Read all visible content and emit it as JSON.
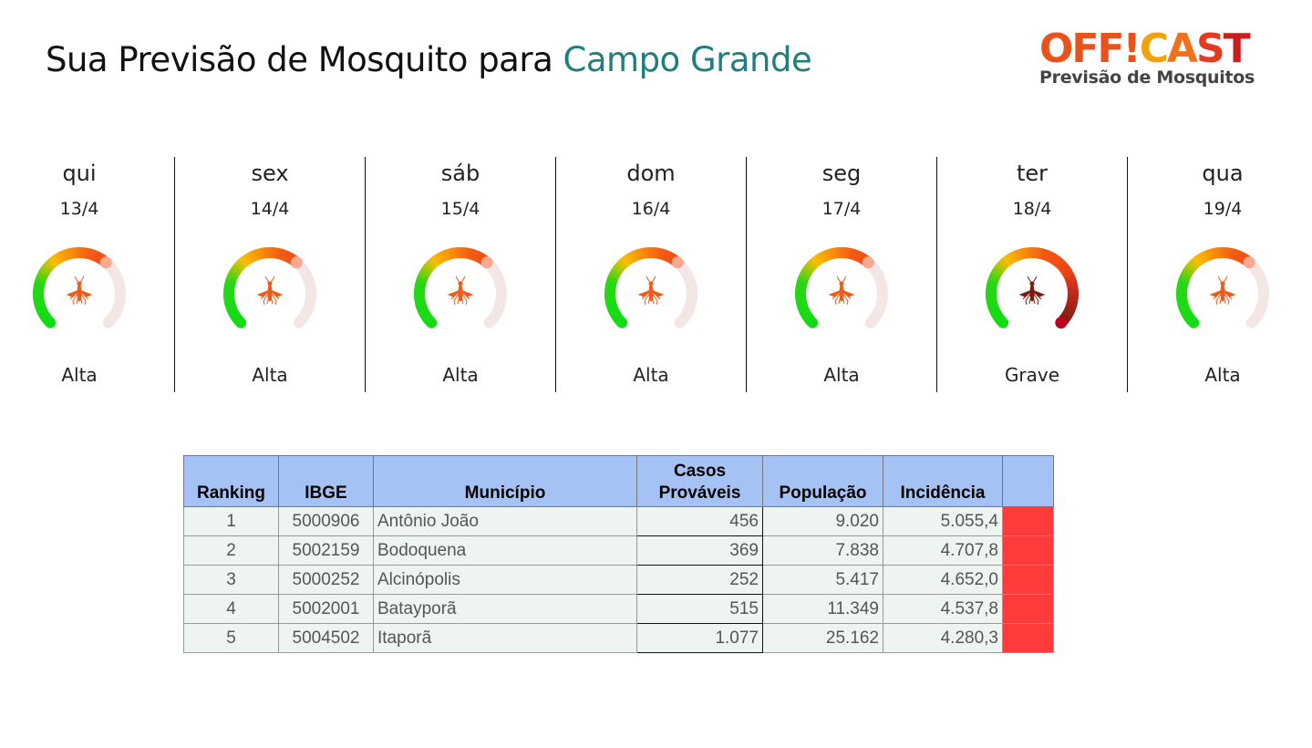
{
  "header": {
    "title_prefix": "Sua Previsão de Mosquito para",
    "city": "Campo Grande"
  },
  "logo": {
    "text": "OFF!CAST",
    "subtitle": "Previsão de Mosquitos"
  },
  "forecast": [
    {
      "day": "qui",
      "date": "13/4",
      "level": "Alta",
      "fill": 0.65
    },
    {
      "day": "sex",
      "date": "14/4",
      "level": "Alta",
      "fill": 0.65
    },
    {
      "day": "sáb",
      "date": "15/4",
      "level": "Alta",
      "fill": 0.65
    },
    {
      "day": "dom",
      "date": "16/4",
      "level": "Alta",
      "fill": 0.65
    },
    {
      "day": "seg",
      "date": "17/4",
      "level": "Alta",
      "fill": 0.65
    },
    {
      "day": "ter",
      "date": "18/4",
      "level": "Grave",
      "fill": 1.0
    },
    {
      "day": "qua",
      "date": "19/4",
      "level": "Alta",
      "fill": 0.65
    }
  ],
  "colors": {
    "alta_icon": "#f05a1a",
    "grave_icon": "#7a1c10",
    "track": "#f3e6e4",
    "flag": "#ff3b3b",
    "header_bg": "#a4c2f4",
    "city": "#1f7f7c"
  },
  "table": {
    "headers": [
      "Ranking",
      "IBGE",
      "Município",
      "Casos Prováveis",
      "População",
      "Incidência",
      ""
    ],
    "rows": [
      [
        "1",
        "5000906",
        "Antônio João",
        "456",
        "9.020",
        "5.055,4"
      ],
      [
        "2",
        "5002159",
        "Bodoquena",
        "369",
        "7.838",
        "4.707,8"
      ],
      [
        "3",
        "5000252",
        "Alcinópolis",
        "252",
        "5.417",
        "4.652,0"
      ],
      [
        "4",
        "5002001",
        "Batayporã",
        "515",
        "11.349",
        "4.537,8"
      ],
      [
        "5",
        "5004502",
        "Itaporã",
        "1.077",
        "25.162",
        "4.280,3"
      ]
    ]
  }
}
